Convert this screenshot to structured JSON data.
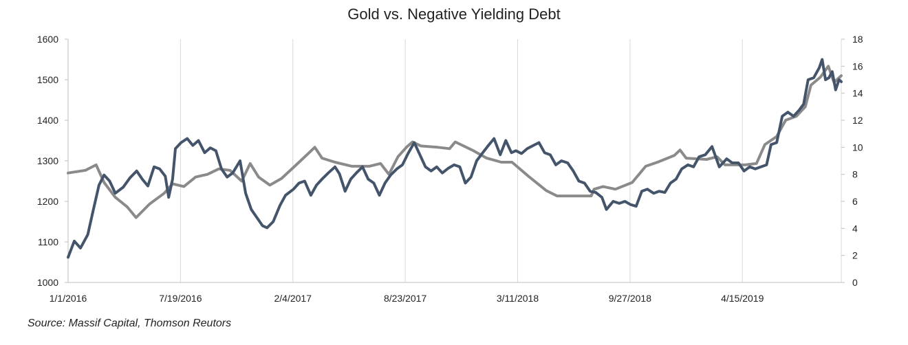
{
  "chart_data": {
    "type": "line",
    "title": "Gold vs. Negative Yielding Debt",
    "xlabel": "",
    "ylabel": "",
    "y2label": "",
    "xlim": [
      "2016-01-01",
      "2019-10-08"
    ],
    "ylim": [
      1000,
      1600
    ],
    "y2lim": [
      0,
      18
    ],
    "x_ticks": [
      "1/1/2016",
      "7/19/2016",
      "2/4/2017",
      "8/23/2017",
      "3/11/2018",
      "9/27/2018",
      "4/15/2019"
    ],
    "y_ticks": [
      1000,
      1100,
      1200,
      1300,
      1400,
      1500,
      1600
    ],
    "y2_ticks": [
      0,
      2,
      4,
      6,
      8,
      10,
      12,
      14,
      16,
      18
    ],
    "grid": "vertical",
    "legend": "none",
    "series": [
      {
        "axis": "left",
        "color": "#44546a",
        "points": [
          [
            "2016-01-01",
            1062
          ],
          [
            "2016-01-12",
            1102
          ],
          [
            "2016-01-23",
            1085
          ],
          [
            "2016-02-05",
            1118
          ],
          [
            "2016-02-15",
            1180
          ],
          [
            "2016-02-25",
            1240
          ],
          [
            "2016-03-05",
            1265
          ],
          [
            "2016-03-15",
            1250
          ],
          [
            "2016-03-25",
            1220
          ],
          [
            "2016-04-08",
            1235
          ],
          [
            "2016-04-20",
            1258
          ],
          [
            "2016-05-02",
            1275
          ],
          [
            "2016-05-12",
            1255
          ],
          [
            "2016-05-22",
            1238
          ],
          [
            "2016-06-02",
            1285
          ],
          [
            "2016-06-12",
            1280
          ],
          [
            "2016-06-22",
            1262
          ],
          [
            "2016-06-28",
            1210
          ],
          [
            "2016-07-05",
            1255
          ],
          [
            "2016-07-10",
            1330
          ],
          [
            "2016-07-20",
            1345
          ],
          [
            "2016-07-31",
            1355
          ],
          [
            "2016-08-10",
            1338
          ],
          [
            "2016-08-20",
            1350
          ],
          [
            "2016-08-31",
            1320
          ],
          [
            "2016-09-10",
            1332
          ],
          [
            "2016-09-20",
            1325
          ],
          [
            "2016-09-30",
            1280
          ],
          [
            "2016-10-10",
            1260
          ],
          [
            "2016-10-20",
            1270
          ],
          [
            "2016-11-02",
            1300
          ],
          [
            "2016-11-12",
            1220
          ],
          [
            "2016-11-22",
            1180
          ],
          [
            "2016-12-02",
            1160
          ],
          [
            "2016-12-12",
            1140
          ],
          [
            "2016-12-20",
            1135
          ],
          [
            "2016-12-31",
            1150
          ],
          [
            "2017-01-12",
            1190
          ],
          [
            "2017-01-22",
            1215
          ],
          [
            "2017-02-05",
            1230
          ],
          [
            "2017-02-15",
            1245
          ],
          [
            "2017-02-25",
            1250
          ],
          [
            "2017-03-08",
            1215
          ],
          [
            "2017-03-18",
            1240
          ],
          [
            "2017-03-28",
            1255
          ],
          [
            "2017-04-08",
            1270
          ],
          [
            "2017-04-20",
            1285
          ],
          [
            "2017-04-28",
            1268
          ],
          [
            "2017-05-08",
            1225
          ],
          [
            "2017-05-18",
            1255
          ],
          [
            "2017-05-28",
            1270
          ],
          [
            "2017-06-08",
            1285
          ],
          [
            "2017-06-18",
            1255
          ],
          [
            "2017-06-28",
            1245
          ],
          [
            "2017-07-08",
            1215
          ],
          [
            "2017-07-18",
            1245
          ],
          [
            "2017-07-28",
            1265
          ],
          [
            "2017-08-08",
            1280
          ],
          [
            "2017-08-18",
            1290
          ],
          [
            "2017-08-28",
            1318
          ],
          [
            "2017-09-08",
            1345
          ],
          [
            "2017-09-18",
            1315
          ],
          [
            "2017-09-28",
            1285
          ],
          [
            "2017-10-08",
            1275
          ],
          [
            "2017-10-18",
            1285
          ],
          [
            "2017-10-28",
            1270
          ],
          [
            "2017-11-08",
            1282
          ],
          [
            "2017-11-18",
            1290
          ],
          [
            "2017-11-28",
            1285
          ],
          [
            "2017-12-08",
            1245
          ],
          [
            "2017-12-18",
            1260
          ],
          [
            "2017-12-28",
            1300
          ],
          [
            "2018-01-08",
            1320
          ],
          [
            "2018-01-18",
            1338
          ],
          [
            "2018-01-28",
            1355
          ],
          [
            "2018-02-08",
            1315
          ],
          [
            "2018-02-18",
            1350
          ],
          [
            "2018-02-28",
            1320
          ],
          [
            "2018-03-08",
            1325
          ],
          [
            "2018-03-18",
            1318
          ],
          [
            "2018-03-28",
            1330
          ],
          [
            "2018-04-08",
            1338
          ],
          [
            "2018-04-18",
            1345
          ],
          [
            "2018-04-28",
            1320
          ],
          [
            "2018-05-08",
            1315
          ],
          [
            "2018-05-18",
            1290
          ],
          [
            "2018-05-28",
            1300
          ],
          [
            "2018-06-08",
            1295
          ],
          [
            "2018-06-18",
            1275
          ],
          [
            "2018-06-28",
            1250
          ],
          [
            "2018-07-08",
            1245
          ],
          [
            "2018-07-18",
            1225
          ],
          [
            "2018-07-28",
            1222
          ],
          [
            "2018-08-08",
            1210
          ],
          [
            "2018-08-16",
            1180
          ],
          [
            "2018-08-28",
            1200
          ],
          [
            "2018-09-08",
            1195
          ],
          [
            "2018-09-18",
            1200
          ],
          [
            "2018-09-28",
            1192
          ],
          [
            "2018-10-08",
            1188
          ],
          [
            "2018-10-18",
            1225
          ],
          [
            "2018-10-28",
            1230
          ],
          [
            "2018-11-08",
            1220
          ],
          [
            "2018-11-18",
            1225
          ],
          [
            "2018-11-28",
            1222
          ],
          [
            "2018-12-08",
            1245
          ],
          [
            "2018-12-18",
            1255
          ],
          [
            "2018-12-28",
            1280
          ],
          [
            "2019-01-08",
            1290
          ],
          [
            "2019-01-18",
            1285
          ],
          [
            "2019-01-28",
            1310
          ],
          [
            "2019-02-08",
            1315
          ],
          [
            "2019-02-20",
            1335
          ],
          [
            "2019-03-05",
            1285
          ],
          [
            "2019-03-18",
            1305
          ],
          [
            "2019-03-28",
            1295
          ],
          [
            "2019-04-08",
            1295
          ],
          [
            "2019-04-18",
            1275
          ],
          [
            "2019-04-28",
            1285
          ],
          [
            "2019-05-08",
            1280
          ],
          [
            "2019-05-18",
            1285
          ],
          [
            "2019-05-28",
            1290
          ],
          [
            "2019-06-05",
            1340
          ],
          [
            "2019-06-15",
            1345
          ],
          [
            "2019-06-25",
            1410
          ],
          [
            "2019-07-05",
            1420
          ],
          [
            "2019-07-15",
            1410
          ],
          [
            "2019-07-25",
            1425
          ],
          [
            "2019-08-02",
            1440
          ],
          [
            "2019-08-10",
            1500
          ],
          [
            "2019-08-20",
            1505
          ],
          [
            "2019-08-30",
            1530
          ],
          [
            "2019-09-04",
            1550
          ],
          [
            "2019-09-10",
            1500
          ],
          [
            "2019-09-16",
            1505
          ],
          [
            "2019-09-22",
            1520
          ],
          [
            "2019-09-28",
            1475
          ],
          [
            "2019-10-04",
            1500
          ],
          [
            "2019-10-08",
            1495
          ]
        ]
      },
      {
        "axis": "right",
        "color": "#8a8a8a",
        "points": [
          [
            "2016-01-01",
            8.1
          ],
          [
            "2016-02-01",
            8.3
          ],
          [
            "2016-02-20",
            8.7
          ],
          [
            "2016-03-05",
            7.4
          ],
          [
            "2016-03-25",
            6.3
          ],
          [
            "2016-04-15",
            5.6
          ],
          [
            "2016-05-01",
            4.8
          ],
          [
            "2016-05-25",
            5.8
          ],
          [
            "2016-06-20",
            6.6
          ],
          [
            "2016-07-05",
            7.3
          ],
          [
            "2016-07-25",
            7.1
          ],
          [
            "2016-08-15",
            7.8
          ],
          [
            "2016-09-05",
            8.0
          ],
          [
            "2016-09-25",
            8.4
          ],
          [
            "2016-10-15",
            8.3
          ],
          [
            "2016-11-05",
            7.5
          ],
          [
            "2016-11-20",
            8.8
          ],
          [
            "2016-12-05",
            7.8
          ],
          [
            "2016-12-25",
            7.2
          ],
          [
            "2017-01-15",
            7.7
          ],
          [
            "2017-02-10",
            8.7
          ],
          [
            "2017-03-05",
            9.6
          ],
          [
            "2017-03-15",
            10.0
          ],
          [
            "2017-03-28",
            9.2
          ],
          [
            "2017-04-20",
            8.9
          ],
          [
            "2017-05-20",
            8.6
          ],
          [
            "2017-06-20",
            8.6
          ],
          [
            "2017-07-10",
            8.8
          ],
          [
            "2017-07-25",
            8.0
          ],
          [
            "2017-08-10",
            9.3
          ],
          [
            "2017-08-25",
            10.0
          ],
          [
            "2017-09-05",
            10.4
          ],
          [
            "2017-09-20",
            10.1
          ],
          [
            "2017-10-20",
            10.0
          ],
          [
            "2017-11-10",
            9.9
          ],
          [
            "2017-11-20",
            10.4
          ],
          [
            "2017-12-20",
            9.8
          ],
          [
            "2018-01-15",
            9.2
          ],
          [
            "2018-02-10",
            8.9
          ],
          [
            "2018-03-01",
            8.9
          ],
          [
            "2018-04-01",
            7.8
          ],
          [
            "2018-05-01",
            6.8
          ],
          [
            "2018-05-20",
            6.4
          ],
          [
            "2018-07-20",
            6.4
          ],
          [
            "2018-07-25",
            6.9
          ],
          [
            "2018-08-10",
            7.1
          ],
          [
            "2018-09-01",
            6.9
          ],
          [
            "2018-10-01",
            7.4
          ],
          [
            "2018-10-25",
            8.6
          ],
          [
            "2018-11-15",
            8.9
          ],
          [
            "2018-12-15",
            9.4
          ],
          [
            "2018-12-25",
            9.8
          ],
          [
            "2019-01-05",
            9.2
          ],
          [
            "2019-02-10",
            9.1
          ],
          [
            "2019-03-01",
            9.3
          ],
          [
            "2019-03-15",
            8.7
          ],
          [
            "2019-04-20",
            8.7
          ],
          [
            "2019-05-10",
            8.8
          ],
          [
            "2019-05-25",
            10.2
          ],
          [
            "2019-06-15",
            10.8
          ],
          [
            "2019-07-01",
            12.0
          ],
          [
            "2019-07-20",
            12.3
          ],
          [
            "2019-08-05",
            13.0
          ],
          [
            "2019-08-15",
            14.6
          ],
          [
            "2019-09-01",
            15.2
          ],
          [
            "2019-09-15",
            16.0
          ],
          [
            "2019-09-25",
            14.8
          ],
          [
            "2019-10-08",
            15.3
          ]
        ]
      }
    ],
    "source": "Source: Massif Capital, Thomson Reutors"
  }
}
